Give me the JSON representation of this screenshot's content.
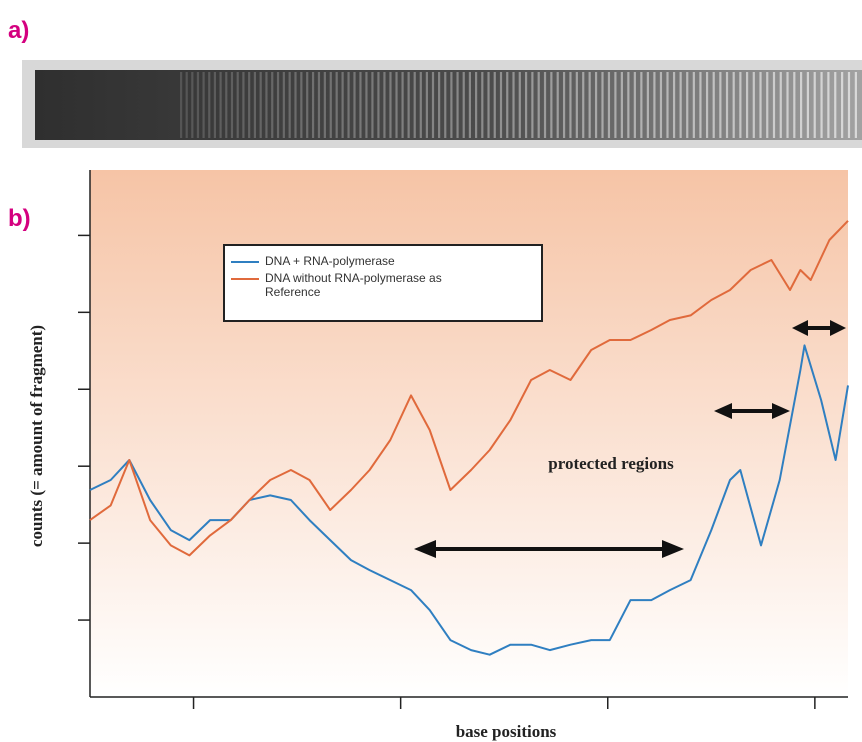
{
  "labels": [
    "a)",
    "b)"
  ],
  "chart_data": {
    "type": "line",
    "ylabel": "counts (= amount of fragment)",
    "xlabel": "base positions",
    "annotation": "protected regions",
    "xlim": [
      0,
      3.66
    ],
    "xticks": [
      0.5,
      1.5,
      2.5,
      3.5
    ],
    "ylim": [
      0,
      6.85
    ],
    "yticks": [
      1,
      2,
      3,
      4,
      5,
      6
    ],
    "series": [
      {
        "name": "DNA + RNA-polymerase",
        "color": "#2f7fc1",
        "x": [
          0,
          0.1,
          0.19,
          0.29,
          0.39,
          0.48,
          0.58,
          0.68,
          0.77,
          0.87,
          0.97,
          1.06,
          1.16,
          1.26,
          1.35,
          1.45,
          1.55,
          1.64,
          1.74,
          1.84,
          1.93,
          2.03,
          2.13,
          2.22,
          2.32,
          2.42,
          2.51,
          2.61,
          2.71,
          2.8,
          2.9,
          3.0,
          3.09,
          3.14,
          3.24,
          3.33,
          3.43,
          3.45,
          3.53,
          3.6,
          3.66
        ],
        "values": [
          2.69,
          2.82,
          3.08,
          2.56,
          2.17,
          2.04,
          2.3,
          2.3,
          2.56,
          2.62,
          2.56,
          2.3,
          2.04,
          1.78,
          1.65,
          1.52,
          1.39,
          1.13,
          0.74,
          0.61,
          0.55,
          0.68,
          0.68,
          0.61,
          0.68,
          0.74,
          0.74,
          1.26,
          1.26,
          1.39,
          1.52,
          2.17,
          2.82,
          2.95,
          1.97,
          2.82,
          4.25,
          4.57,
          3.86,
          3.08,
          4.05
        ]
      },
      {
        "name": "DNA without RNA-polymerase  as Reference",
        "color": "#e06a3c",
        "x": [
          0,
          0.1,
          0.19,
          0.29,
          0.39,
          0.48,
          0.58,
          0.68,
          0.77,
          0.87,
          0.97,
          1.06,
          1.16,
          1.26,
          1.35,
          1.45,
          1.55,
          1.64,
          1.74,
          1.84,
          1.93,
          2.03,
          2.13,
          2.22,
          2.32,
          2.42,
          2.51,
          2.61,
          2.71,
          2.8,
          2.9,
          3.0,
          3.09,
          3.19,
          3.29,
          3.38,
          3.43,
          3.48,
          3.57,
          3.66
        ],
        "values": [
          2.3,
          2.49,
          3.08,
          2.3,
          1.97,
          1.84,
          2.1,
          2.3,
          2.56,
          2.82,
          2.95,
          2.82,
          2.43,
          2.69,
          2.95,
          3.34,
          3.92,
          3.47,
          2.69,
          2.95,
          3.21,
          3.6,
          4.12,
          4.25,
          4.12,
          4.51,
          4.64,
          4.64,
          4.77,
          4.9,
          4.96,
          5.16,
          5.29,
          5.55,
          5.68,
          5.29,
          5.55,
          5.42,
          5.94,
          6.19
        ]
      }
    ]
  }
}
